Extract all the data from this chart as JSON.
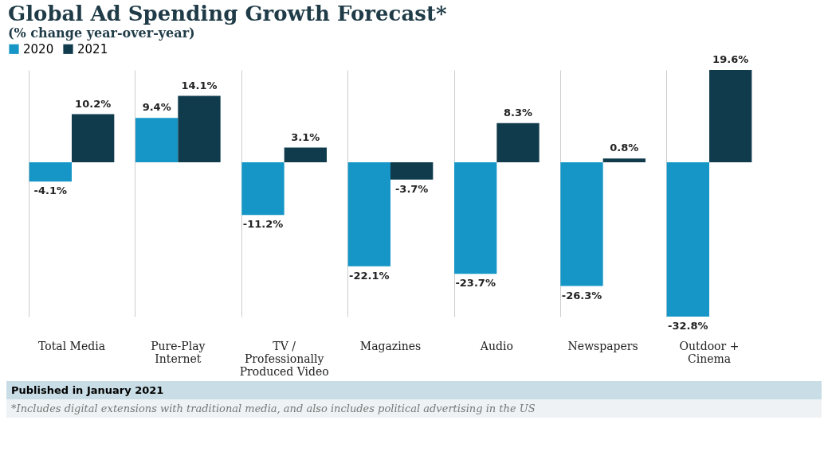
{
  "chart_data": {
    "type": "bar",
    "title": "Global Ad Spending Growth Forecast*",
    "subtitle": "(% change year-over-year)",
    "categories": [
      "Total Media",
      "Pure-Play Internet",
      "TV / Professionally Produced Video",
      "Magazines",
      "Audio",
      "Newspapers",
      "Outdoor + Cinema"
    ],
    "series": [
      {
        "name": "2020",
        "color": "#1596c6",
        "values": [
          -4.1,
          9.4,
          -11.2,
          -22.1,
          -23.7,
          -26.3,
          -32.8
        ],
        "value_labels": [
          "-4.1%",
          "9.4%",
          "-11.2%",
          "-22.1%",
          "-23.7%",
          "-26.3%",
          "-32.8%"
        ]
      },
      {
        "name": "2021",
        "color": "#0f3b4c",
        "values": [
          10.2,
          14.1,
          3.1,
          -3.7,
          8.3,
          0.8,
          19.6
        ],
        "value_labels": [
          "10.2%",
          "14.1%",
          "3.1%",
          "-3.7%",
          "8.3%",
          "0.8%",
          "19.6%"
        ]
      }
    ],
    "legend": "top left",
    "grid": "x",
    "annotations": [
      "Published in January 2021",
      "*Includes digital extensions with traditional media, and also includes political advertising in the US"
    ]
  }
}
